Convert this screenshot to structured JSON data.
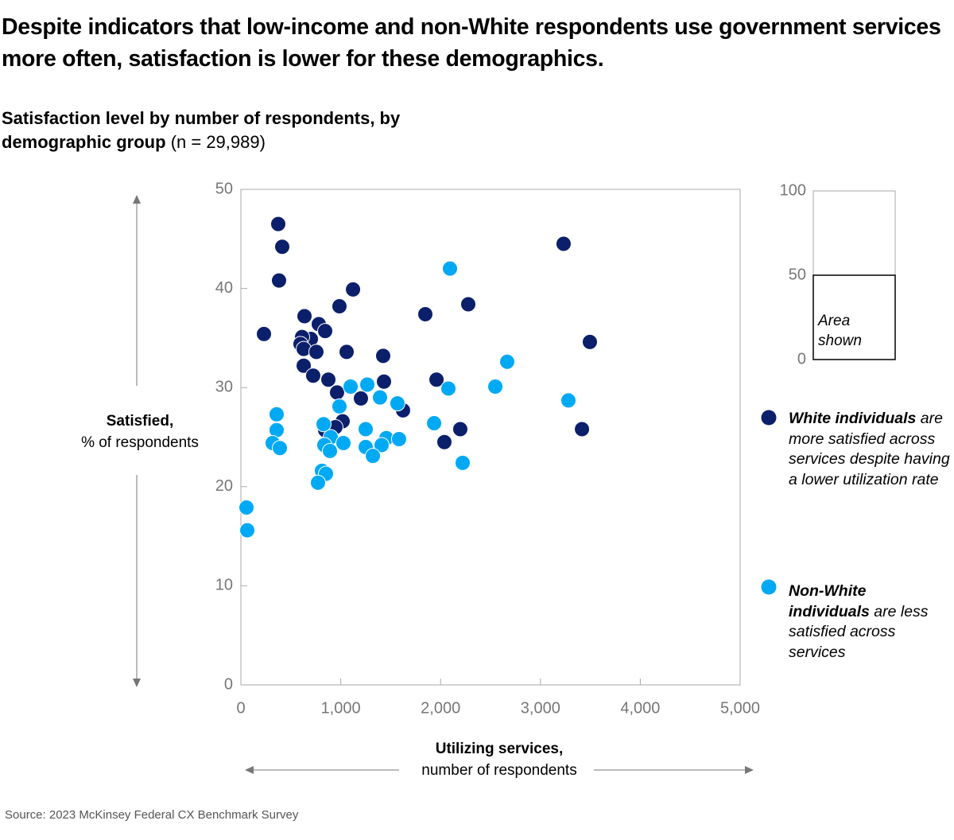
{
  "chart_data": {
    "type": "scatter",
    "title": "Despite indicators that low-income and non-White respondents use government services more often, satisfaction is lower for these demographics.",
    "subtitle": "Satisfaction level by number of respondents, by demographic group",
    "subtitle_note": "(n = 29,989)",
    "y_label": "Satisfied,",
    "y_label_note": "% of respondents",
    "x_label": "Utilizing services,",
    "x_label_note": "number of respondents",
    "source": "Source: 2023 McKinsey Federal CX Benchmark Survey",
    "xlim": [
      0,
      5000
    ],
    "ylim": [
      0,
      50
    ],
    "xticks": [
      0,
      {
        "value": 1000,
        "label": "1,000"
      },
      {
        "value": 2000,
        "label": "2,000"
      },
      {
        "value": 3000,
        "label": "3,000"
      },
      {
        "value": 4000,
        "label": "4,000"
      },
      {
        "value": 5000,
        "label": "5,000"
      }
    ],
    "yticks": [
      0,
      10,
      20,
      30,
      40,
      50
    ],
    "inset": {
      "ylim": [
        0,
        100
      ],
      "yticks": [
        0,
        50,
        100
      ],
      "label": "Area shown"
    },
    "series": [
      {
        "name": "White individuals",
        "note": "are more satisfied across services despite having a lower utilization rate",
        "color": "#0b1f6b",
        "x": [
          374,
          414,
          382,
          231,
          1123,
          987,
          637,
          780,
          844,
          701,
          613,
          597,
          629,
          756,
          1059,
          1425,
          629,
          724,
          876,
          1433,
          963,
          1202,
          1624,
          1019,
          844,
          947,
          1847,
          2277,
          1959,
          2197,
          2038,
          3232,
          3495,
          3416
        ],
        "values": [
          46.5,
          44.2,
          40.8,
          35.4,
          39.9,
          38.2,
          37.2,
          36.4,
          35.7,
          34.9,
          35.1,
          34.4,
          33.9,
          33.6,
          33.6,
          33.2,
          32.2,
          31.2,
          30.8,
          30.6,
          29.5,
          28.9,
          27.7,
          26.6,
          25.7,
          26.0,
          37.4,
          38.4,
          30.8,
          25.8,
          24.5,
          44.5,
          34.6,
          25.8
        ]
      },
      {
        "name": "Non-White individuals",
        "note": "are less satisfied across services",
        "color": "#00a9f4",
        "x": [
          2094,
          2667,
          2548,
          2078,
          3280,
          1935,
          2221,
          56,
          64,
          358,
          358,
          318,
          390,
          1099,
          1266,
          1393,
          1568,
          987,
          828,
          900,
          836,
          1027,
          1250,
          1457,
          1584,
          1250,
          1409,
          1322,
          892,
          812,
          852,
          772
        ],
        "values": [
          42.0,
          32.6,
          30.1,
          29.9,
          28.7,
          26.4,
          22.4,
          17.9,
          15.6,
          27.3,
          25.7,
          24.4,
          23.9,
          30.1,
          30.3,
          29.0,
          28.4,
          28.1,
          26.3,
          25.0,
          24.2,
          24.4,
          25.8,
          24.9,
          24.8,
          24.0,
          24.2,
          23.1,
          23.6,
          21.6,
          21.3,
          20.4
        ]
      }
    ]
  }
}
